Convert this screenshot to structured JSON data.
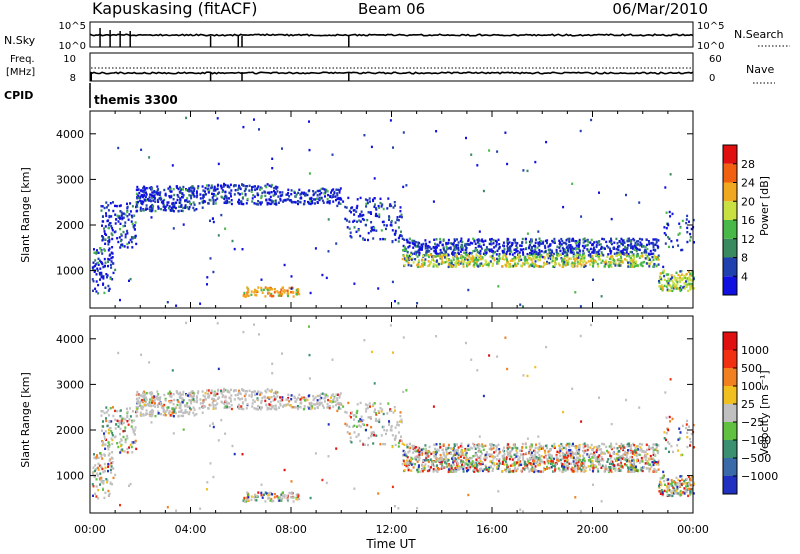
{
  "header": {
    "station": "Kapuskasing (fitACF)",
    "beam": "Beam 06",
    "date": "06/Mar/2010"
  },
  "noise_panel": {
    "left_label": "N.Sky",
    "right_label": "N.Search",
    "left_ticks": [
      "10^5",
      "10^0"
    ],
    "right_ticks": [
      "10^5",
      "10^0"
    ]
  },
  "freq_panel": {
    "left_label_1": "Freq.",
    "left_label_2": "[MHz]",
    "right_label": "Nave",
    "left_ticks": [
      "10",
      "8"
    ],
    "right_ticks": [
      "60",
      "0"
    ]
  },
  "cpid": {
    "label": "CPID",
    "value": "themis 3300"
  },
  "chart_data": [
    {
      "type": "heatmap",
      "name": "power",
      "xlabel": "",
      "ylabel": "Slant Range [km]",
      "x_ticks": [
        "00:00",
        "04:00",
        "08:00",
        "12:00",
        "16:00",
        "20:00",
        "00:00"
      ],
      "x_range_hours": [
        0,
        24
      ],
      "y_ticks": [
        1000,
        2000,
        3000,
        4000
      ],
      "ylim": [
        180,
        4500
      ],
      "colorbar": {
        "label": "Power [dB]",
        "ticks": [
          "4",
          "8",
          "12",
          "16",
          "20",
          "24",
          "28"
        ],
        "colors": [
          "#1010e0",
          "#2040b0",
          "#3a8a60",
          "#48b848",
          "#c8e040",
          "#f0a820",
          "#f06010",
          "#e01010"
        ]
      }
    },
    {
      "type": "heatmap",
      "name": "velocity",
      "xlabel": "Time UT",
      "ylabel": "Slant Range [km]",
      "x_ticks": [
        "00:00",
        "04:00",
        "08:00",
        "12:00",
        "16:00",
        "20:00",
        "00:00"
      ],
      "x_range_hours": [
        0,
        24
      ],
      "y_ticks": [
        1000,
        2000,
        3000,
        4000
      ],
      "ylim": [
        180,
        4500
      ],
      "colorbar": {
        "label": "Velocity [m s⁻¹]",
        "ticks": [
          "1000",
          "500",
          "100",
          "25",
          "−25",
          "−100",
          "−500",
          "−1000"
        ],
        "colors": [
          "#2030c0",
          "#3a6aa8",
          "#3a9070",
          "#60c040",
          "#c0c0c0",
          "#f0c020",
          "#f08020",
          "#f03010",
          "#e01010"
        ]
      }
    }
  ],
  "scatter_regions": [
    {
      "t0": 0.05,
      "t1": 0.9,
      "r0": 500,
      "r1": 1500,
      "n": 90,
      "gs": 0.5
    },
    {
      "t0": 0.4,
      "t1": 1.8,
      "r0": 1500,
      "r1": 2500,
      "n": 140,
      "gs": 0.6
    },
    {
      "t0": 1.8,
      "t1": 4.2,
      "r0": 2300,
      "r1": 2850,
      "n": 260,
      "gs": 0.7
    },
    {
      "t0": 4.2,
      "t1": 7.5,
      "r0": 2450,
      "r1": 2900,
      "n": 220,
      "gs": 0.75
    },
    {
      "t0": 7.5,
      "t1": 10.0,
      "r0": 2450,
      "r1": 2800,
      "n": 140,
      "gs": 0.75
    },
    {
      "t0": 10.0,
      "t1": 12.4,
      "r0": 1600,
      "r1": 2600,
      "n": 140,
      "gs": 0.6
    },
    {
      "t0": 12.4,
      "t1": 22.6,
      "r0": 1350,
      "r1": 1700,
      "n": 700,
      "gs": 0.55
    },
    {
      "t0": 12.4,
      "t1": 22.6,
      "r0": 1080,
      "r1": 1350,
      "n": 650,
      "gs": 0.35
    },
    {
      "t0": 6.0,
      "t1": 8.3,
      "r0": 430,
      "r1": 630,
      "n": 90,
      "gs": 0.5
    },
    {
      "t0": 22.6,
      "t1": 24.0,
      "r0": 550,
      "r1": 1000,
      "n": 140,
      "gs": 0.3
    },
    {
      "t0": 22.8,
      "t1": 24.0,
      "r0": 1400,
      "r1": 2300,
      "n": 40,
      "gs": 0.5
    },
    {
      "t0": 0.0,
      "t1": 24.0,
      "r0": 200,
      "r1": 4400,
      "n": 120,
      "gs": 0.6
    }
  ]
}
